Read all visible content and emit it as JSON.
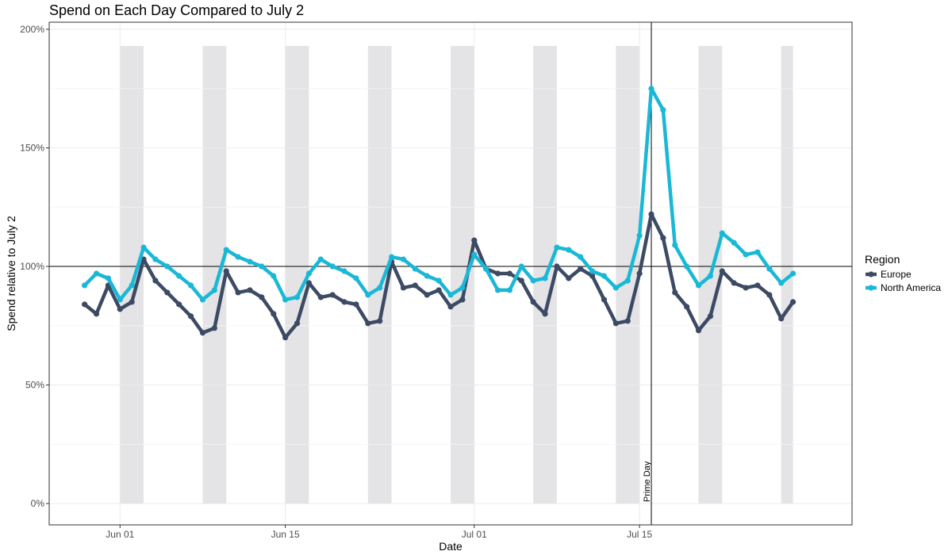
{
  "chart_data": {
    "type": "line",
    "title": "Spend on Each Day Compared to July 2",
    "xlabel": "Date",
    "ylabel": "Spend relative to July 2",
    "x_start": "2020-05-29",
    "x_end": "2020-07-29",
    "xlim": [
      "2020-05-26",
      "2020-08-02"
    ],
    "ylim": [
      -0.09,
      2.03
    ],
    "y_ticks": [
      0,
      0.5,
      1.0,
      1.5,
      2.0
    ],
    "y_tick_labels": [
      "0%",
      "50%",
      "100%",
      "150%",
      "200%"
    ],
    "x_ticks": [
      "2020-06-01",
      "2020-06-15",
      "2020-07-01",
      "2020-07-15"
    ],
    "x_tick_labels": [
      "Jun 01",
      "Jun 15",
      "Jul 01",
      "Jul 15"
    ],
    "grid": true,
    "reference_hline": 1.0,
    "reference_vline": "2020-07-16",
    "annotation": "Prime Day",
    "weekend_bands": [
      [
        "2020-06-01",
        "2020-06-03"
      ],
      [
        "2020-06-08",
        "2020-06-10"
      ],
      [
        "2020-06-15",
        "2020-06-17"
      ],
      [
        "2020-06-22",
        "2020-06-24"
      ],
      [
        "2020-06-29",
        "2020-07-01"
      ],
      [
        "2020-07-06",
        "2020-07-08"
      ],
      [
        "2020-07-13",
        "2020-07-15"
      ],
      [
        "2020-07-20",
        "2020-07-22"
      ],
      [
        "2020-07-27",
        "2020-07-28"
      ]
    ],
    "band_top": 1.93,
    "legend_title": "Region",
    "legend_position": "right",
    "series": [
      {
        "name": "Europe",
        "color": "#3d4a64",
        "values": [
          0.84,
          0.8,
          0.92,
          0.82,
          0.85,
          1.03,
          0.94,
          0.89,
          0.84,
          0.79,
          0.72,
          0.74,
          0.98,
          0.89,
          0.9,
          0.87,
          0.8,
          0.7,
          0.76,
          0.93,
          0.87,
          0.88,
          0.85,
          0.84,
          0.76,
          0.77,
          1.02,
          0.91,
          0.92,
          0.88,
          0.9,
          0.83,
          0.86,
          1.11,
          0.99,
          0.97,
          0.97,
          0.94,
          0.85,
          0.8,
          1.0,
          0.95,
          0.99,
          0.96,
          0.86,
          0.76,
          0.77,
          0.97,
          1.22,
          1.12,
          0.89,
          0.83,
          0.73,
          0.79,
          0.98,
          0.93,
          0.91,
          0.92,
          0.88,
          0.78,
          0.85
        ]
      },
      {
        "name": "North America",
        "color": "#1ab8d6",
        "values": [
          0.92,
          0.97,
          0.95,
          0.86,
          0.92,
          1.08,
          1.03,
          1.0,
          0.96,
          0.92,
          0.86,
          0.9,
          1.07,
          1.04,
          1.02,
          1.0,
          0.96,
          0.86,
          0.87,
          0.97,
          1.03,
          1.0,
          0.98,
          0.95,
          0.88,
          0.91,
          1.04,
          1.03,
          0.99,
          0.96,
          0.94,
          0.88,
          0.91,
          1.05,
          0.99,
          0.9,
          0.9,
          1.0,
          0.94,
          0.95,
          1.08,
          1.07,
          1.04,
          0.98,
          0.96,
          0.91,
          0.94,
          1.13,
          1.75,
          1.66,
          1.09,
          1.0,
          0.92,
          0.96,
          1.14,
          1.1,
          1.05,
          1.06,
          0.99,
          0.93,
          0.97
        ]
      }
    ]
  }
}
